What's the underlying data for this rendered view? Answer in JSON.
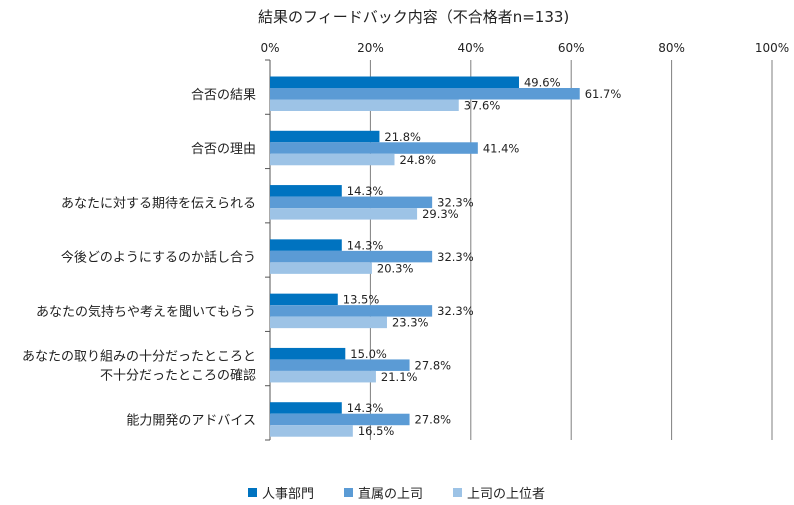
{
  "chart_data": {
    "type": "bar",
    "orientation": "horizontal",
    "title": "結果のフィードバック内容（不合格者n=133)",
    "categories": [
      [
        "合否の結果"
      ],
      [
        "合否の理由"
      ],
      [
        "あなたに対する期待を伝えられる"
      ],
      [
        "今後どのようにするのか話し合う"
      ],
      [
        "あなたの気持ちや考えを聞いてもらう"
      ],
      [
        "あなたの取り組みの十分だったところと",
        "不十分だったところの確認"
      ],
      [
        "能力開発のアドバイス"
      ]
    ],
    "series": [
      {
        "name": "人事部門",
        "color": "#0073c0",
        "values": [
          49.6,
          21.8,
          14.3,
          14.3,
          13.5,
          15.0,
          14.3
        ],
        "labels": [
          "49.6%",
          "21.8%",
          "14.3%",
          "14.3%",
          "13.5%",
          "15.0%",
          "14.3%"
        ]
      },
      {
        "name": "直属の上司",
        "color": "#5b9bd5",
        "values": [
          61.7,
          41.4,
          32.3,
          32.3,
          32.3,
          27.8,
          27.8
        ],
        "labels": [
          "61.7%",
          "41.4%",
          "32.3%",
          "32.3%",
          "32.3%",
          "27.8%",
          "27.8%"
        ]
      },
      {
        "name": "上司の上位者",
        "color": "#9dc3e6",
        "values": [
          37.6,
          24.8,
          29.3,
          20.3,
          23.3,
          21.1,
          16.5
        ],
        "labels": [
          "37.6%",
          "24.8%",
          "29.3%",
          "20.3%",
          "23.3%",
          "21.1%",
          "16.5%"
        ]
      }
    ],
    "xlim": [
      0,
      100
    ],
    "xticks": [
      "0%",
      "20%",
      "40%",
      "60%",
      "80%",
      "100%"
    ],
    "grid": true,
    "legend_position": "bottom"
  }
}
